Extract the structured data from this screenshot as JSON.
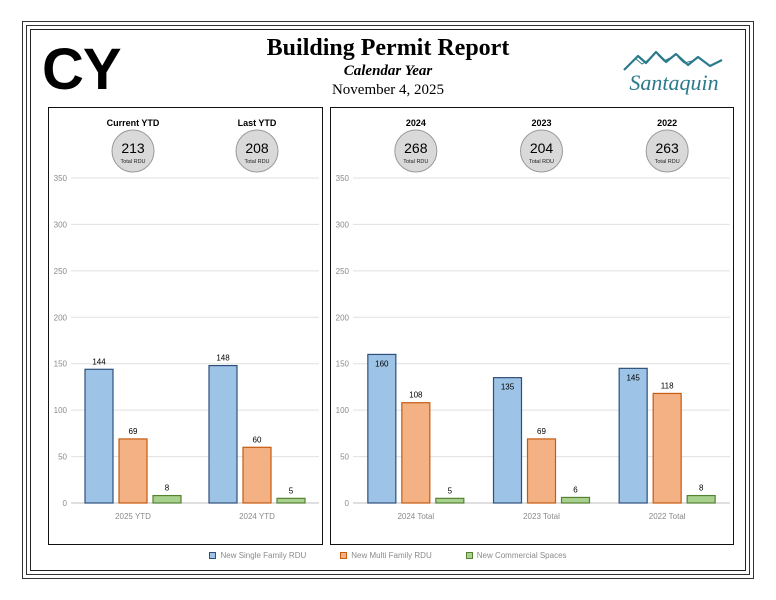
{
  "header": {
    "badge": "CY",
    "title": "Building Permit Report",
    "subtitle": "Calendar Year",
    "date": "November 4, 2025",
    "logo_text": "Santaquin"
  },
  "colors": {
    "single": "#9dc3e6",
    "single_border": "#2e4f7a",
    "multi": "#f4b183",
    "multi_border": "#c55a11",
    "commercial": "#a9d18e",
    "commercial_border": "#548235",
    "circle": "#d9d9d9",
    "logo": "#2a7a8c"
  },
  "legend": [
    {
      "label": "New Single Family RDU",
      "color_key": "single"
    },
    {
      "label": "New Multi Family RDU",
      "color_key": "multi"
    },
    {
      "label": "New Commercial Spaces",
      "color_key": "commercial"
    }
  ],
  "chart_data": [
    {
      "type": "bar",
      "name": "ytd-comparison",
      "categories": [
        "2025 YTD",
        "2024 YTD"
      ],
      "series": [
        {
          "name": "New Single Family RDU",
          "values": [
            144,
            148
          ]
        },
        {
          "name": "New Multi Family RDU",
          "values": [
            69,
            60
          ]
        },
        {
          "name": "New Commercial Spaces",
          "values": [
            8,
            5
          ]
        }
      ],
      "headers": [
        "Current YTD",
        "Last YTD"
      ],
      "totals": [
        213,
        208
      ],
      "total_label": "Total RDU",
      "ylim": [
        0,
        350
      ],
      "yticks": [
        0,
        50,
        100,
        150,
        200,
        250,
        300,
        350
      ],
      "grid": true
    },
    {
      "type": "bar",
      "name": "prior-years",
      "categories": [
        "2024 Total",
        "2023 Total",
        "2022 Total"
      ],
      "series": [
        {
          "name": "New Single Family RDU",
          "values": [
            160,
            135,
            145
          ]
        },
        {
          "name": "New Multi Family RDU",
          "values": [
            108,
            69,
            118
          ]
        },
        {
          "name": "New Commercial Spaces",
          "values": [
            5,
            6,
            8
          ]
        }
      ],
      "headers": [
        "2024",
        "2023",
        "2022"
      ],
      "totals": [
        268,
        204,
        263
      ],
      "total_label": "Total RDU",
      "ylim": [
        0,
        350
      ],
      "yticks": [
        0,
        50,
        100,
        150,
        200,
        250,
        300,
        350
      ],
      "grid": true
    }
  ]
}
